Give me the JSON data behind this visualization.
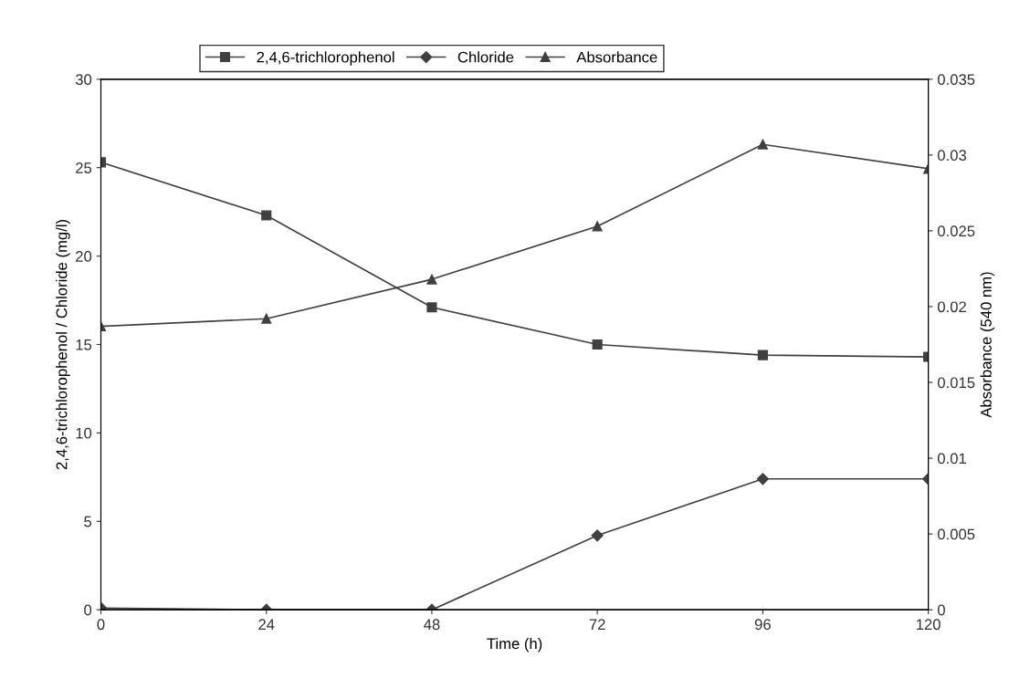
{
  "chart_data": {
    "type": "line",
    "xlabel": "Time (h)",
    "ylabel": "2,4,6-trichlorophenol / Chloride (mg/l)",
    "y2label": "Absorbance (540 nm)",
    "x": [
      0,
      24,
      48,
      72,
      96,
      120
    ],
    "series": [
      {
        "name": "2,4,6-trichlorophenol",
        "color": "#404040",
        "marker": "square",
        "values": [
          25.3,
          22.3,
          17.1,
          15.0,
          14.4,
          14.3
        ]
      },
      {
        "name": "Chloride",
        "color": "#404040",
        "marker": "diamond",
        "values": [
          0.1,
          0,
          0,
          4.2,
          7.4,
          7.4
        ]
      },
      {
        "name": "Absorbance",
        "color": "#404040",
        "marker": "triangle",
        "axis": "y2",
        "values": [
          0.0187,
          0.0192,
          0.0218,
          0.0253,
          0.0307,
          0.0291
        ]
      }
    ],
    "xlim": [
      0,
      120
    ],
    "xticks": [
      0,
      24,
      48,
      72,
      96,
      120
    ],
    "ylim": [
      0,
      30
    ],
    "yticks": [
      0,
      5,
      10,
      15,
      20,
      25,
      30
    ],
    "y2lim": [
      0,
      0.035
    ],
    "y2ticks": [
      0,
      0.005,
      0.01,
      0.015,
      0.02,
      0.025,
      0.03,
      0.035
    ],
    "grid": false,
    "legend": "top",
    "line_style": "solid"
  }
}
